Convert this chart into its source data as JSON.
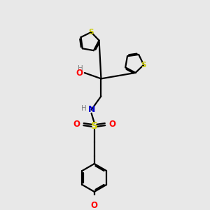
{
  "bg_color": "#e8e8e8",
  "bond_color": "#000000",
  "S_color": "#cccc00",
  "O_color": "#ff0000",
  "N_color": "#0000cd",
  "H_color": "#808080",
  "line_width": 1.6,
  "dpi": 100,
  "fig_size": [
    3.0,
    3.0
  ],
  "xlim": [
    0,
    10
  ],
  "ylim": [
    0,
    10
  ]
}
